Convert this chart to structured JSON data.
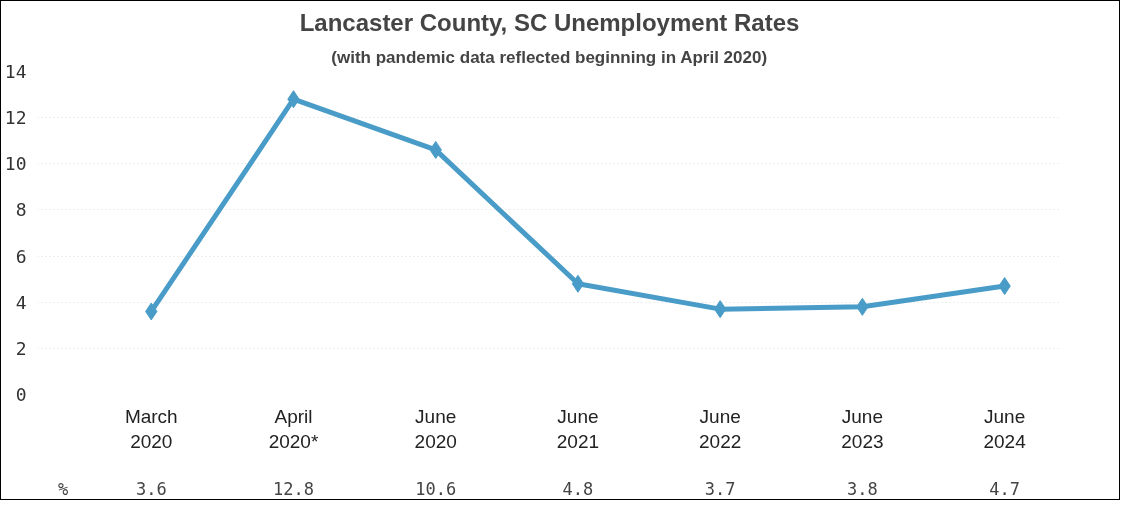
{
  "chart_data": {
    "type": "line",
    "title": "Lancaster County, SC Unemployment Rates",
    "subtitle": "(with pandemic data reflected beginning in April 2020)",
    "categories": [
      "March\n2020",
      "April\n2020*",
      "June\n2020",
      "June\n2021",
      "June\n2022",
      "June\n2023",
      "June\n2024"
    ],
    "series": [
      {
        "color": "#4a9cc8",
        "values": [
          3.6,
          12.8,
          10.6,
          4.8,
          3.7,
          3.8,
          4.7
        ]
      }
    ],
    "ylim": [
      0,
      14
    ],
    "yticks": [
      0,
      2,
      4,
      6,
      8,
      10,
      12,
      14
    ],
    "grid": "y",
    "marker": "diamond",
    "line_style": "solid",
    "data_labels": true,
    "annotations": [
      "%"
    ]
  }
}
